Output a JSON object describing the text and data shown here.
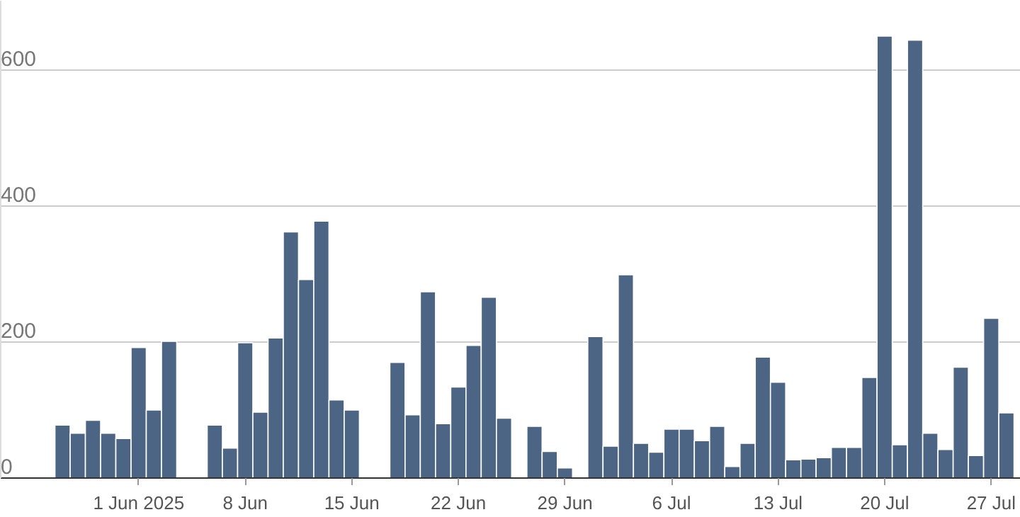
{
  "chart_data": {
    "type": "bar",
    "color": "#4c6585",
    "x": [
      "2025-05-27",
      "2025-05-28",
      "2025-05-29",
      "2025-05-30",
      "2025-05-31",
      "2025-06-01",
      "2025-06-02",
      "2025-06-03",
      "2025-06-04",
      "2025-06-05",
      "2025-06-06",
      "2025-06-07",
      "2025-06-08",
      "2025-06-09",
      "2025-06-10",
      "2025-06-11",
      "2025-06-12",
      "2025-06-13",
      "2025-06-14",
      "2025-06-15",
      "2025-06-16",
      "2025-06-17",
      "2025-06-18",
      "2025-06-19",
      "2025-06-20",
      "2025-06-21",
      "2025-06-22",
      "2025-06-23",
      "2025-06-24",
      "2025-06-25",
      "2025-06-26",
      "2025-06-27",
      "2025-06-28",
      "2025-06-29",
      "2025-06-30",
      "2025-07-01",
      "2025-07-02",
      "2025-07-03",
      "2025-07-04",
      "2025-07-05",
      "2025-07-06",
      "2025-07-07",
      "2025-07-08",
      "2025-07-09",
      "2025-07-10",
      "2025-07-11",
      "2025-07-12",
      "2025-07-13",
      "2025-07-14",
      "2025-07-15",
      "2025-07-16",
      "2025-07-17",
      "2025-07-18",
      "2025-07-19",
      "2025-07-20",
      "2025-07-21",
      "2025-07-22",
      "2025-07-23",
      "2025-07-24",
      "2025-07-25",
      "2025-07-26",
      "2025-07-27",
      "2025-07-28"
    ],
    "values": [
      78,
      66,
      85,
      66,
      58,
      192,
      100,
      201,
      null,
      null,
      78,
      44,
      199,
      97,
      206,
      362,
      292,
      378,
      115,
      100,
      null,
      null,
      170,
      93,
      274,
      80,
      134,
      195,
      266,
      88,
      null,
      76,
      39,
      15,
      null,
      208,
      47,
      299,
      51,
      38,
      72,
      72,
      55,
      76,
      17,
      51,
      178,
      141,
      27,
      28,
      30,
      45,
      45,
      148,
      650,
      49,
      644,
      66,
      42,
      163,
      33,
      235,
      96
    ],
    "xlim": [
      "2025-05-22T22:30",
      "2025-07-28T22:30"
    ],
    "xticks": [
      {
        "value": "2025-06-01",
        "label": "1 Jun 2025"
      },
      {
        "value": "2025-06-08",
        "label": "8 Jun"
      },
      {
        "value": "2025-06-15",
        "label": "15 Jun"
      },
      {
        "value": "2025-06-22",
        "label": "22 Jun"
      },
      {
        "value": "2025-06-29",
        "label": "29 Jun"
      },
      {
        "value": "2025-07-06",
        "label": "6 Jul"
      },
      {
        "value": "2025-07-13",
        "label": "13 Jul"
      },
      {
        "value": "2025-07-20",
        "label": "20 Jul"
      },
      {
        "value": "2025-07-27",
        "label": "27 Jul"
      }
    ],
    "ylim": [
      0,
      702
    ],
    "yticks": [
      0,
      200,
      400,
      600
    ],
    "grid": "y"
  }
}
